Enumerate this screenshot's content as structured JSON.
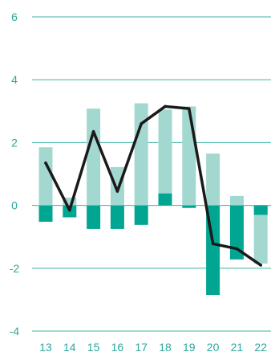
{
  "chart_data": {
    "type": "bar",
    "title": "",
    "xlabel": "",
    "ylabel": "",
    "categories": [
      "13",
      "14",
      "15",
      "16",
      "17",
      "18",
      "19",
      "20",
      "21",
      "22"
    ],
    "ylim": [
      -4,
      6
    ],
    "yticks": [
      6,
      4,
      2,
      0,
      -2,
      -4
    ],
    "ytick_labels": [
      "6",
      "4",
      "2",
      "0",
      "-2",
      "-4"
    ],
    "grid": true,
    "legend": "none",
    "series": [
      {
        "kind": "stacked-bar",
        "color": "#a3d8d1",
        "values": [
          1.85,
          0.25,
          3.08,
          1.22,
          3.25,
          3.05,
          3.15,
          1.65,
          0.3,
          -1.85
        ]
      },
      {
        "kind": "stacked-bar",
        "color": "#00a692",
        "values": [
          -0.52,
          -0.38,
          -0.75,
          -0.75,
          -0.62,
          0.38,
          -0.08,
          -2.85,
          -1.72,
          -0.3
        ]
      },
      {
        "kind": "line",
        "color": "#1a1a1a",
        "values": [
          1.35,
          -0.15,
          2.35,
          0.45,
          2.6,
          3.15,
          3.08,
          -1.22,
          -1.38,
          -1.9
        ]
      }
    ]
  }
}
